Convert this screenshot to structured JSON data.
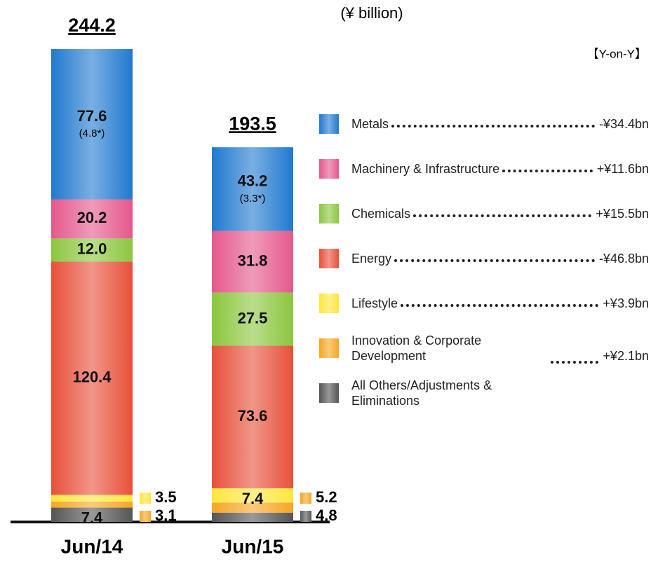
{
  "chart_data": {
    "type": "stacked_bar",
    "unit_label": "(¥ billion)",
    "yoy_header": "【Y-on-Y】",
    "categories": [
      "Jun/14",
      "Jun/15"
    ],
    "totals": [
      244.2,
      193.5
    ],
    "series": [
      {
        "name": "All Others/Adjustments & Eliminations",
        "color": "#555555",
        "values": [
          7.4,
          4.8
        ]
      },
      {
        "name": "Innovation & Corporate Development",
        "color": "#f5a623",
        "values": [
          3.1,
          5.2
        ],
        "yoy": "+¥2.1bn"
      },
      {
        "name": "Lifestyle",
        "color": "#ffe63c",
        "values": [
          3.5,
          7.4
        ],
        "yoy": "+¥3.9bn"
      },
      {
        "name": "Energy",
        "color": "#e8503a",
        "values": [
          120.4,
          73.6
        ],
        "yoy": "-¥46.8bn"
      },
      {
        "name": "Chemicals",
        "color": "#8cc63e",
        "values": [
          12.0,
          27.5
        ],
        "value_labels": [
          "12.0",
          "27.5"
        ],
        "yoy": "+¥15.5bn"
      },
      {
        "name": "Machinery & Infrastructure",
        "color": "#e5588c",
        "values": [
          20.2,
          31.8
        ],
        "yoy": "+¥11.6bn"
      },
      {
        "name": "Metals",
        "color": "#2079cf",
        "values": [
          77.6,
          43.2
        ],
        "sublabels": [
          "(4.8*)",
          "(3.3*)"
        ],
        "yoy": "-¥34.4bn"
      }
    ]
  }
}
